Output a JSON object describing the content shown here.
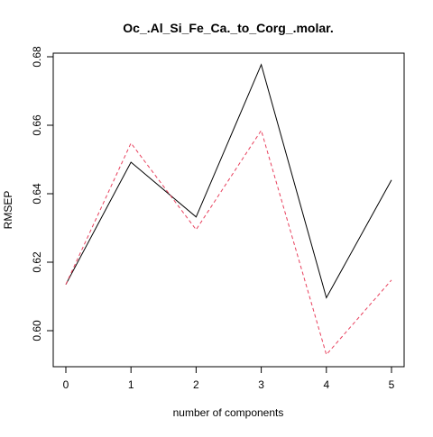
{
  "chart_data": {
    "type": "line",
    "title": "Oc_.Al_Si_Fe_Ca._to_Corg_.molar.",
    "xlabel": "number of components",
    "ylabel": "RMSEP",
    "x": [
      0,
      1,
      2,
      3,
      4,
      5
    ],
    "xlim": [
      0,
      5
    ],
    "ylim": [
      0.59,
      0.68
    ],
    "xticks": [
      "0",
      "1",
      "2",
      "3",
      "4",
      "5"
    ],
    "yticks": [
      "0.60",
      "0.62",
      "0.64",
      "0.66",
      "0.68"
    ],
    "grid": false,
    "series": [
      {
        "values": [
          0.6135,
          0.6492,
          0.6332,
          0.6777,
          0.6096,
          0.644
        ],
        "color": "#000000",
        "dash": "solid"
      },
      {
        "values": [
          0.6135,
          0.6548,
          0.6295,
          0.6585,
          0.593,
          0.6148
        ],
        "color": "#e8405d",
        "dash": "dashed"
      }
    ]
  }
}
